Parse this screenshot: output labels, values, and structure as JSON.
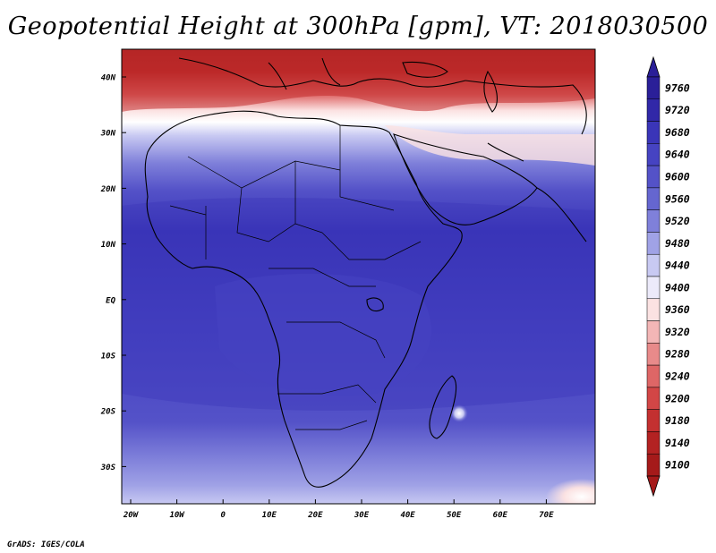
{
  "title": "Geopotential Height at 300hPa [gpm], VT: 2018030500",
  "credit": "GrADS: IGES/COLA",
  "axes": {
    "lat_ticks": [
      "40N",
      "30N",
      "20N",
      "10N",
      "EQ",
      "10S",
      "20S",
      "30S"
    ],
    "lon_ticks": [
      "20W",
      "10W",
      "0",
      "10E",
      "20E",
      "30E",
      "40E",
      "50E",
      "60E",
      "70E"
    ]
  },
  "colorbar": {
    "levels": [
      "9760",
      "9720",
      "9680",
      "9640",
      "9600",
      "9560",
      "9520",
      "9480",
      "9440",
      "9400",
      "9360",
      "9320",
      "9280",
      "9240",
      "9200",
      "9180",
      "9140",
      "9100"
    ],
    "colors": [
      "#2a1f98",
      "#3128a8",
      "#3a35b8",
      "#4643c2",
      "#5452c8",
      "#6566d0",
      "#7f80da",
      "#a0a2e6",
      "#c8c9f2",
      "#eceafa",
      "#fbe2e2",
      "#f3b6b6",
      "#e88a8a",
      "#de6666",
      "#d24646",
      "#c33030",
      "#b32222",
      "#a51a1a"
    ]
  },
  "colors": {
    "coast": "#000000",
    "land_outline": "#000000"
  }
}
